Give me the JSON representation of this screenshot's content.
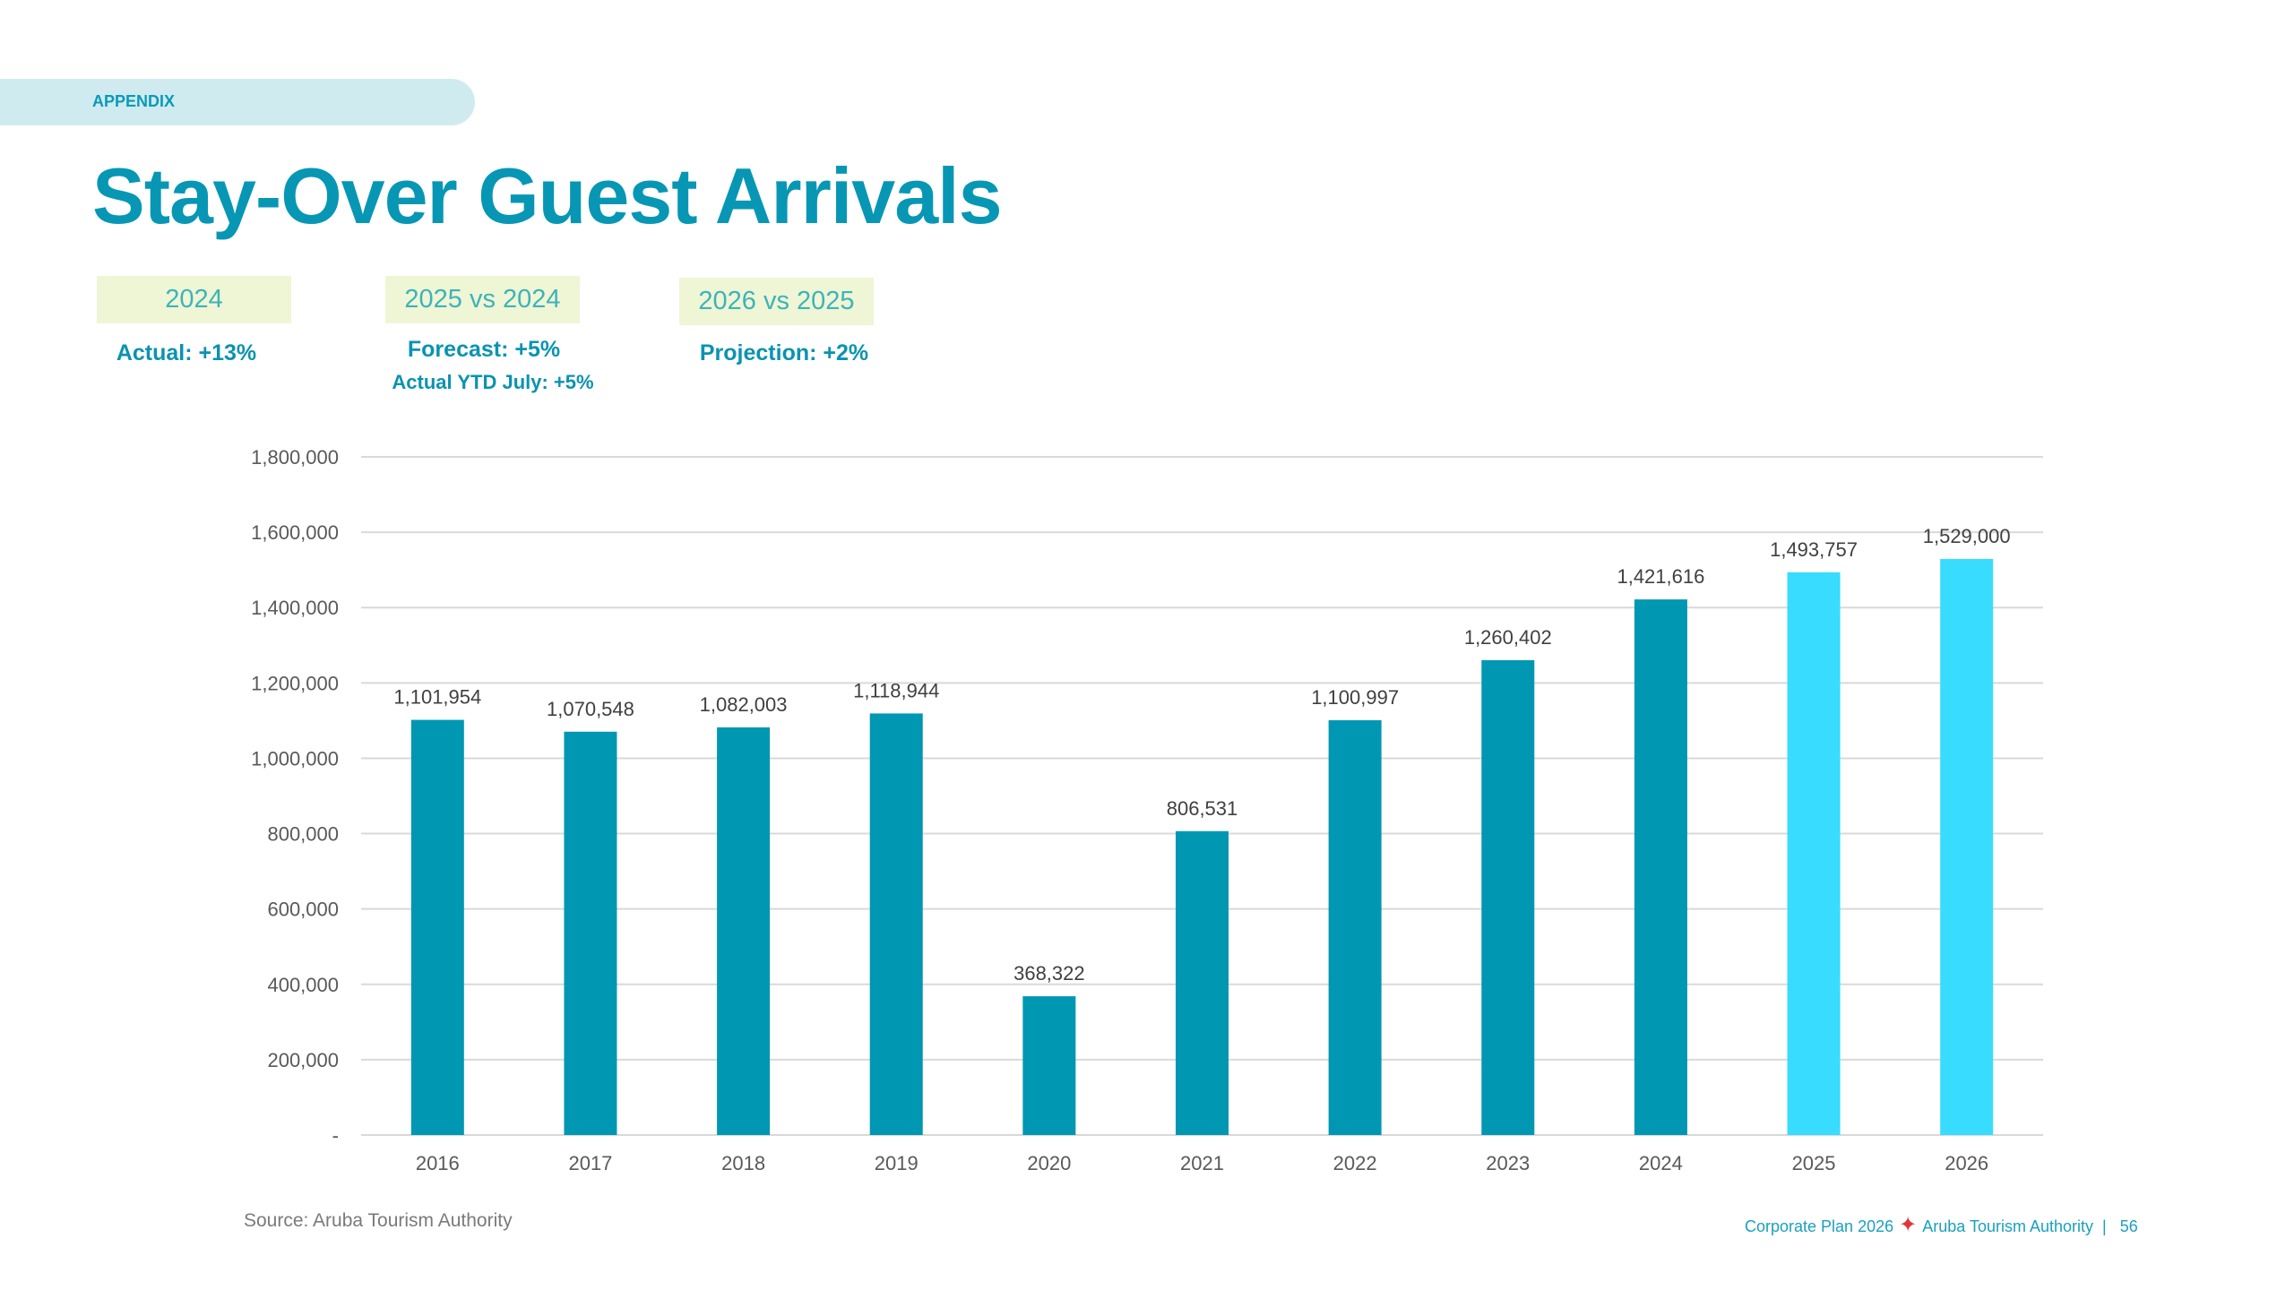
{
  "section_tag": "APPENDIX",
  "title": "Stay-Over Guest Arrivals",
  "kpis": [
    {
      "label": "2024",
      "lines": [
        "Actual: +13%"
      ]
    },
    {
      "label": "2025 vs 2024",
      "lines": [
        "Forecast: +5%",
        "Actual YTD July: +5%"
      ]
    },
    {
      "label": "2026 vs 2025",
      "lines": [
        "Projection: +2%"
      ]
    }
  ],
  "chart_data": {
    "type": "bar",
    "categories": [
      "2016",
      "2017",
      "2018",
      "2019",
      "2020",
      "2021",
      "2022",
      "2023",
      "2024",
      "2025",
      "2026"
    ],
    "values": [
      1101954,
      1070548,
      1082003,
      1118944,
      368322,
      806531,
      1100997,
      1260402,
      1421616,
      1493757,
      1529000
    ],
    "data_labels": [
      "1,101,954",
      "1,070,548",
      "1,082,003",
      "1,118,944",
      "368,322",
      "806,531",
      "1,100,997",
      "1,260,402",
      "1,421,616",
      "1,493,757",
      "1,529,000"
    ],
    "ylim": [
      0,
      1800000
    ],
    "yticks": [
      0,
      200000,
      400000,
      600000,
      800000,
      1000000,
      1200000,
      1400000,
      1600000,
      1800000
    ],
    "ytick_labels": [
      "-",
      "200,000",
      "400,000",
      "600,000",
      "800,000",
      "1,000,000",
      "1,200,000",
      "1,400,000",
      "1,600,000",
      "1,800,000"
    ],
    "grid": true,
    "colors": {
      "actual": "#0097b2",
      "forecast": "#38dcff"
    },
    "bar_colors": [
      "actual",
      "actual",
      "actual",
      "actual",
      "actual",
      "actual",
      "actual",
      "actual",
      "actual",
      "forecast",
      "forecast"
    ]
  },
  "source": "Source: Aruba Tourism Authority",
  "footer": {
    "left": "Corporate Plan 2026",
    "right": "Aruba Tourism Authority",
    "separator": "|",
    "page": "56"
  }
}
